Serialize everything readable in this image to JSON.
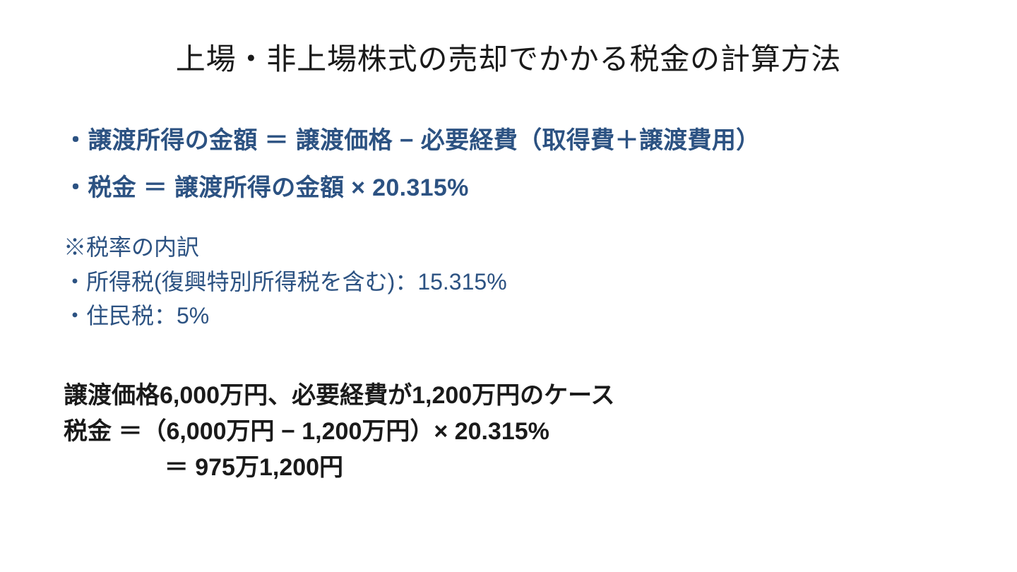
{
  "title": "上場・非上場株式の売却でかかる税金の計算方法",
  "formula1": "・譲渡所得の金額 ＝ 譲渡価格 − 必要経費（取得費＋譲渡費用）",
  "formula2": "・税金 ＝ 譲渡所得の金額 × 20.315%",
  "breakdown": {
    "heading": "※税率の内訳",
    "item1": "・所得税(復興特別所得税を含む)：15.315%",
    "item2": "・住民税：5%"
  },
  "example": {
    "line1": "譲渡価格6,000万円、必要経費が1,200万円のケース",
    "line2": "税金 ＝（6,000万円 − 1,200万円）× 20.315%",
    "line3": "＝ 975万1,200円"
  },
  "colors": {
    "background": "#ffffff",
    "title_color": "#1a1a1a",
    "formula_color": "#2c5282",
    "breakdown_color": "#2c5282",
    "example_color": "#1a1a1a"
  },
  "typography": {
    "title_fontsize": 42,
    "formula_fontsize": 34,
    "breakdown_fontsize": 32,
    "example_fontsize": 34,
    "formula_weight": 700,
    "breakdown_weight": 400,
    "example_weight": 700
  }
}
